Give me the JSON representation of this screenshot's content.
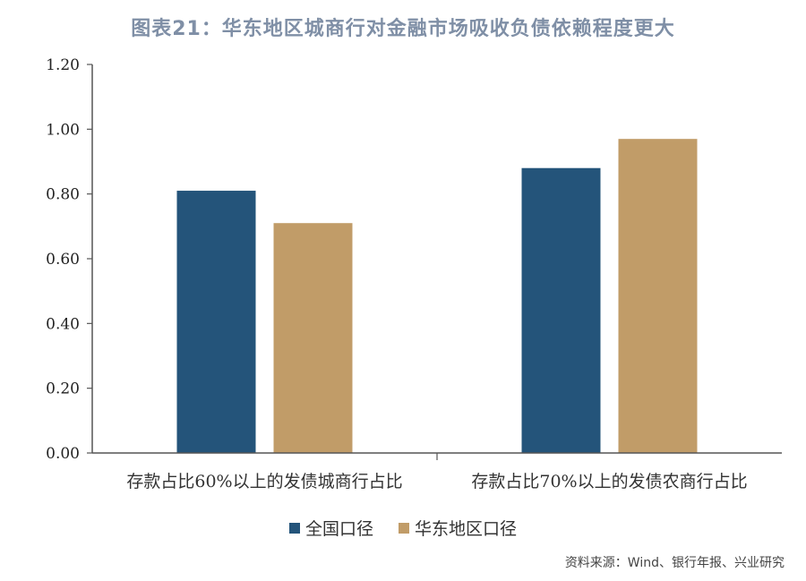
{
  "title": "图表21：华东地区城商行对金融市场吸收负债依赖程度更大",
  "source": "资料来源：Wind、银行年报、兴业研究",
  "chart_data": {
    "type": "bar",
    "categories": [
      "存款占比60%以上的发债城商行占比",
      "存款占比70%以上的发债农商行占比"
    ],
    "series": [
      {
        "name": "全国口径",
        "color": "#24547a",
        "values": [
          0.81,
          0.88
        ]
      },
      {
        "name": "华东地区口径",
        "color": "#c19c68",
        "values": [
          0.71,
          0.97
        ]
      }
    ],
    "yticks": [
      "0.00",
      "0.20",
      "0.40",
      "0.60",
      "0.80",
      "1.00",
      "1.20"
    ],
    "ylim": [
      0,
      1.2
    ],
    "legend": "bottom"
  }
}
